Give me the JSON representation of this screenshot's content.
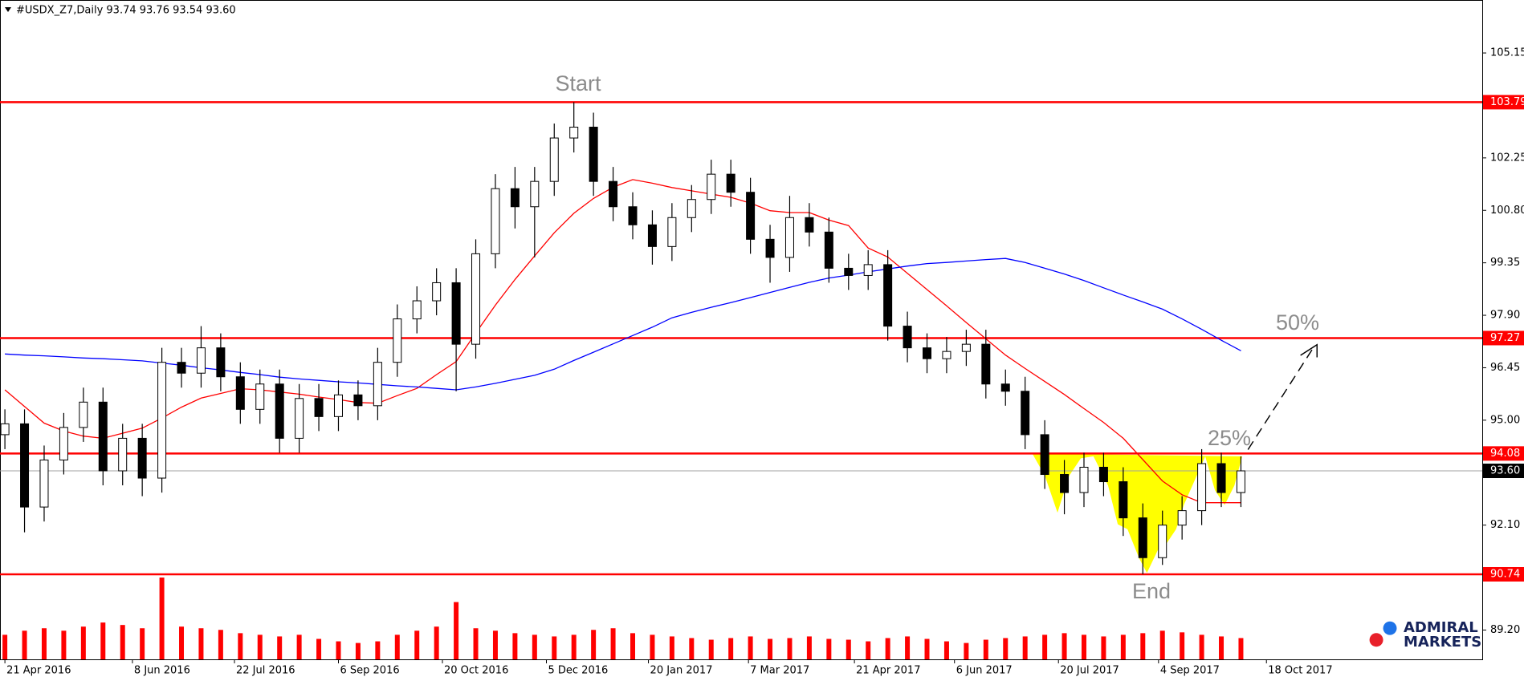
{
  "chart_data": {
    "type": "candlestick",
    "title": "#USDX_Z7,Daily  93.74 93.76 93.54 93.60",
    "open": [
      94.6,
      94.9,
      92.6,
      93.9,
      94.8,
      95.5,
      93.6,
      94.5,
      93.4,
      96.6,
      96.3,
      97.0,
      96.2,
      95.3,
      96.0,
      94.5,
      95.6,
      95.1,
      95.7,
      95.4,
      96.6,
      97.8,
      98.3,
      98.8,
      97.1,
      99.6,
      101.4,
      100.9,
      101.6,
      102.8,
      103.1,
      101.6,
      100.9,
      100.4,
      99.8,
      100.6,
      101.1,
      101.8,
      101.3,
      100.0,
      99.5,
      100.6,
      100.2,
      99.2,
      99.0,
      99.3,
      97.6,
      97.0,
      96.7,
      96.9,
      97.1,
      96.0,
      95.8,
      94.6,
      93.5,
      93.0,
      93.7,
      93.3,
      92.3,
      91.2,
      92.1,
      92.5,
      93.8,
      93.0
    ],
    "high": [
      95.3,
      95.3,
      94.3,
      95.2,
      95.9,
      95.9,
      94.9,
      94.9,
      97.0,
      97.0,
      97.6,
      97.4,
      96.6,
      96.4,
      96.4,
      96.0,
      96.0,
      96.1,
      96.1,
      97.0,
      98.2,
      98.7,
      99.2,
      99.2,
      100.0,
      101.8,
      102.0,
      102.0,
      103.2,
      103.79,
      103.5,
      102.0,
      101.3,
      100.8,
      101.0,
      101.5,
      102.2,
      102.2,
      101.7,
      100.4,
      101.2,
      101.0,
      100.6,
      99.6,
      99.7,
      99.7,
      98.0,
      97.4,
      97.3,
      97.5,
      97.5,
      96.4,
      96.2,
      95.0,
      93.9,
      94.1,
      94.1,
      93.7,
      92.7,
      92.5,
      92.9,
      94.2,
      94.1,
      94.0
    ],
    "low": [
      94.2,
      91.9,
      92.2,
      93.5,
      94.4,
      93.2,
      93.2,
      92.9,
      93.0,
      95.9,
      95.9,
      95.8,
      94.9,
      94.9,
      94.1,
      94.1,
      94.7,
      94.7,
      95.0,
      95.0,
      96.2,
      97.4,
      97.9,
      95.8,
      96.7,
      99.2,
      100.3,
      99.5,
      101.2,
      102.4,
      101.2,
      100.5,
      100.0,
      99.3,
      99.4,
      100.2,
      100.7,
      100.9,
      99.6,
      98.8,
      99.1,
      99.8,
      98.8,
      98.6,
      98.6,
      97.2,
      96.6,
      96.3,
      96.3,
      96.5,
      95.6,
      95.4,
      94.2,
      93.1,
      92.4,
      92.6,
      92.9,
      91.8,
      90.74,
      91.0,
      91.7,
      92.1,
      92.6,
      92.6
    ],
    "close": [
      94.9,
      92.6,
      93.9,
      94.8,
      95.5,
      93.6,
      94.5,
      93.4,
      96.6,
      96.3,
      97.0,
      96.2,
      95.3,
      96.0,
      94.5,
      95.6,
      95.1,
      95.7,
      95.4,
      96.6,
      97.8,
      98.3,
      98.8,
      97.1,
      99.6,
      101.4,
      100.9,
      101.6,
      102.8,
      103.1,
      101.6,
      100.9,
      100.4,
      99.8,
      100.6,
      101.1,
      101.8,
      101.3,
      100.0,
      99.5,
      100.6,
      100.2,
      99.2,
      99.0,
      99.3,
      97.6,
      97.0,
      96.7,
      96.9,
      97.1,
      96.0,
      95.8,
      94.6,
      93.5,
      93.0,
      93.7,
      93.3,
      92.3,
      91.2,
      92.1,
      92.5,
      93.8,
      93.0,
      93.6
    ],
    "series": [
      {
        "color": "#ff0000",
        "values": [
          95.84,
          95.38,
          94.92,
          94.7,
          94.56,
          94.5,
          94.64,
          94.78,
          95.06,
          95.36,
          95.61,
          95.74,
          95.87,
          95.84,
          95.78,
          95.72,
          95.64,
          95.57,
          95.49,
          95.47,
          95.68,
          95.88,
          96.26,
          96.62,
          97.41,
          98.18,
          98.89,
          99.54,
          100.18,
          100.72,
          101.13,
          101.44,
          101.65,
          101.55,
          101.43,
          101.34,
          101.25,
          101.16,
          101.0,
          100.79,
          100.74,
          100.74,
          100.53,
          100.38,
          99.76,
          99.51,
          99.06,
          98.61,
          98.16,
          97.7,
          97.25,
          96.8,
          96.43,
          96.07,
          95.71,
          95.32,
          94.94,
          94.5,
          93.91,
          93.32,
          92.94,
          92.72,
          92.72,
          92.72
        ]
      },
      {
        "color": "#0000ff",
        "values": [
          96.83,
          96.8,
          96.78,
          96.75,
          96.72,
          96.7,
          96.67,
          96.64,
          96.58,
          96.52,
          96.45,
          96.39,
          96.32,
          96.26,
          96.19,
          96.14,
          96.1,
          96.06,
          96.03,
          95.99,
          95.95,
          95.92,
          95.88,
          95.84,
          95.92,
          96.02,
          96.13,
          96.24,
          96.41,
          96.65,
          96.88,
          97.11,
          97.34,
          97.57,
          97.83,
          97.98,
          98.12,
          98.25,
          98.39,
          98.53,
          98.67,
          98.81,
          98.93,
          99.01,
          99.1,
          99.18,
          99.26,
          99.33,
          99.36,
          99.4,
          99.44,
          99.47,
          99.36,
          99.2,
          99.04,
          98.86,
          98.66,
          98.46,
          98.27,
          98.07,
          97.8,
          97.51,
          97.21,
          96.92
        ]
      }
    ],
    "volume": [
      30,
      35,
      38,
      35,
      40,
      45,
      42,
      38,
      100,
      40,
      38,
      36,
      32,
      30,
      28,
      30,
      25,
      22,
      20,
      22,
      30,
      35,
      40,
      70,
      38,
      35,
      32,
      30,
      28,
      30,
      36,
      38,
      32,
      30,
      28,
      26,
      24,
      26,
      28,
      25,
      26,
      28,
      25,
      24,
      22,
      26,
      28,
      25,
      22,
      20,
      24,
      26,
      28,
      30,
      32,
      30,
      28,
      30,
      32,
      35,
      33,
      30,
      28,
      26
    ],
    "volume_color": "#ff0000",
    "levels": [
      103.79,
      97.27,
      94.08,
      90.74
    ],
    "level_color": "#ff0000",
    "last_price": {
      "value": 93.6,
      "label": "93.60"
    },
    "xlim": [
      -0.25,
      75.3
    ],
    "ylim": [
      88.39,
      106.57
    ],
    "yticks": [
      105.15,
      {
        "value": 102.25,
        "label": "102.25"
      },
      {
        "value": 100.8,
        "label": "100.80"
      },
      99.35,
      {
        "value": 97.9,
        "label": "97.90"
      },
      96.45,
      {
        "value": 95,
        "label": "95.00"
      },
      {
        "value": 92.1,
        "label": "92.10"
      },
      {
        "value": 89.2,
        "label": "89.20"
      }
    ],
    "xticks": [
      {
        "value": 0,
        "label": "21 Apr 2016"
      },
      {
        "value": 6.5,
        "label": "8 Jun 2016"
      },
      {
        "value": 11.7,
        "label": "22 Jul 2016"
      },
      {
        "value": 17,
        "label": "6 Sep 2016"
      },
      {
        "value": 22.3,
        "label": "20 Oct 2016"
      },
      {
        "value": 27.6,
        "label": "5 Dec 2016"
      },
      {
        "value": 32.8,
        "label": "20 Jan 2017"
      },
      {
        "value": 37.9,
        "label": "7 Mar 2017"
      },
      {
        "value": 43.3,
        "label": "21 Apr 2017"
      },
      {
        "value": 48.4,
        "label": "6 Jun 2017"
      },
      {
        "value": 53.7,
        "label": "20 Jul 2017"
      },
      {
        "value": 58.8,
        "label": "4 Sep 2017"
      },
      {
        "value": 64.3,
        "label": "18 Oct 2017"
      }
    ],
    "annotations": {
      "start": "Start",
      "end": "End",
      "target1": "25%",
      "target2": "50%"
    },
    "logo": {
      "line1": "ADMIRAL",
      "line2": "MARKETS"
    }
  }
}
